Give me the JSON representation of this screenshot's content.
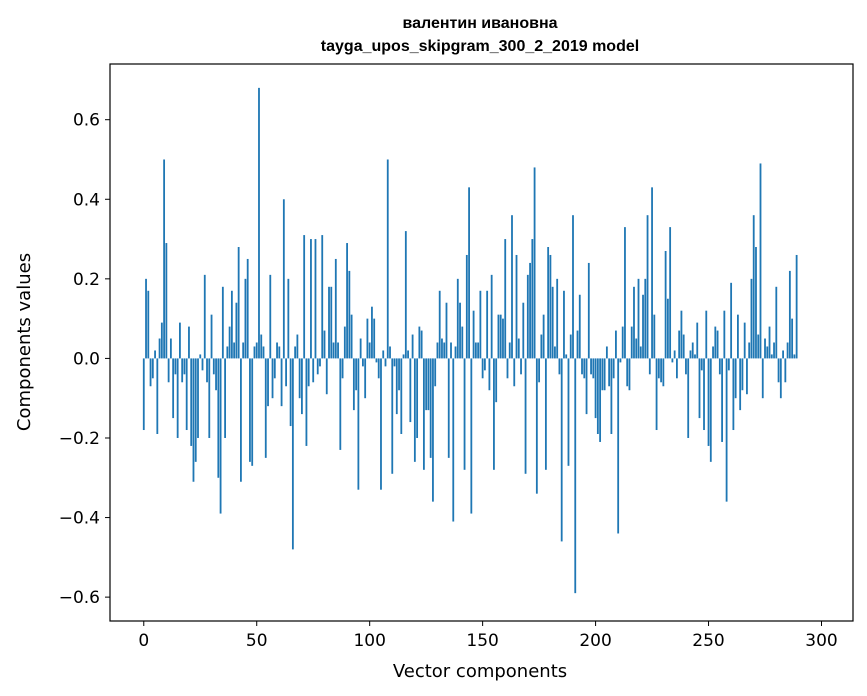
{
  "chart_data": {
    "type": "bar",
    "title": "валентин ивановна",
    "subtitle": "tayga_upos_skipgram_300_2_2019 model",
    "xlabel": "Vector components",
    "ylabel": "Components values",
    "xlim": [
      -14.95,
      313.95
    ],
    "ylim": [
      -0.66,
      0.74
    ],
    "xticks": [
      0,
      50,
      100,
      150,
      200,
      250,
      300
    ],
    "xtick_labels": [
      "0",
      "50",
      "100",
      "150",
      "200",
      "250",
      "300"
    ],
    "yticks": [
      -0.6,
      -0.4,
      -0.2,
      0.0,
      0.2,
      0.4,
      0.6
    ],
    "ytick_labels": [
      "−0.6",
      "−0.4",
      "−0.2",
      "0.0",
      "0.2",
      "0.4",
      "0.6"
    ],
    "bar_color": "#1f77b4",
    "values": [
      -0.18,
      0.2,
      0.17,
      -0.07,
      -0.05,
      0.02,
      -0.19,
      0.05,
      0.09,
      0.5,
      0.29,
      -0.06,
      0.05,
      -0.15,
      -0.04,
      -0.2,
      0.09,
      -0.06,
      -0.04,
      -0.18,
      0.08,
      -0.22,
      -0.31,
      -0.26,
      -0.2,
      0.01,
      -0.03,
      0.21,
      -0.06,
      -0.2,
      0.11,
      -0.04,
      -0.08,
      -0.3,
      -0.39,
      0.18,
      -0.2,
      0.03,
      0.08,
      0.17,
      0.04,
      0.14,
      0.28,
      -0.31,
      0.04,
      0.2,
      0.25,
      -0.26,
      -0.27,
      0.03,
      0.04,
      0.68,
      0.06,
      0.03,
      -0.25,
      -0.12,
      0.21,
      -0.1,
      -0.05,
      0.04,
      0.03,
      -0.12,
      0.4,
      -0.07,
      0.2,
      -0.17,
      -0.48,
      0.03,
      0.06,
      -0.1,
      -0.14,
      0.31,
      -0.22,
      -0.07,
      0.3,
      -0.06,
      0.3,
      -0.04,
      -0.02,
      0.31,
      0.07,
      -0.09,
      0.18,
      0.18,
      0.04,
      0.25,
      0.04,
      -0.23,
      -0.05,
      0.08,
      0.29,
      0.22,
      0.11,
      -0.13,
      -0.08,
      -0.33,
      0.05,
      -0.02,
      -0.1,
      0.1,
      0.04,
      0.13,
      0.1,
      -0.01,
      -0.05,
      -0.33,
      0.02,
      -0.02,
      0.5,
      0.03,
      -0.29,
      -0.02,
      -0.14,
      -0.08,
      -0.19,
      0.01,
      0.32,
      0.02,
      -0.16,
      0.06,
      -0.26,
      -0.2,
      0.08,
      0.07,
      -0.28,
      -0.13,
      -0.13,
      -0.25,
      -0.36,
      -0.07,
      0.04,
      0.17,
      0.05,
      0.04,
      0.14,
      -0.25,
      0.04,
      -0.41,
      0.03,
      0.2,
      0.14,
      0.08,
      -0.28,
      0.26,
      0.43,
      -0.39,
      0.12,
      0.04,
      0.04,
      0.17,
      -0.05,
      -0.03,
      0.17,
      -0.08,
      0.21,
      -0.28,
      -0.11,
      0.11,
      0.11,
      0.1,
      0.3,
      -0.05,
      0.04,
      0.36,
      -0.07,
      0.26,
      0.05,
      -0.04,
      0.14,
      -0.29,
      0.21,
      0.24,
      0.3,
      0.48,
      -0.34,
      -0.06,
      0.06,
      0.11,
      -0.28,
      0.28,
      0.26,
      0.18,
      0.03,
      0.2,
      -0.04,
      -0.46,
      0.17,
      0.01,
      -0.27,
      0.06,
      0.36,
      -0.59,
      0.07,
      0.16,
      -0.04,
      -0.05,
      -0.14,
      0.24,
      -0.04,
      -0.05,
      -0.15,
      -0.19,
      -0.21,
      -0.08,
      -0.08,
      0.03,
      -0.07,
      -0.19,
      -0.05,
      0.07,
      -0.44,
      -0.01,
      0.08,
      0.33,
      -0.07,
      -0.08,
      0.08,
      0.18,
      0.05,
      0.2,
      0.03,
      0.16,
      0.2,
      0.36,
      -0.04,
      0.43,
      0.11,
      -0.18,
      -0.05,
      -0.06,
      -0.07,
      0.27,
      0.15,
      0.33,
      -0.01,
      0.02,
      -0.05,
      0.07,
      0.12,
      0.06,
      -0.04,
      -0.2,
      0.02,
      0.04,
      0.01,
      0.09,
      -0.15,
      -0.03,
      -0.18,
      0.12,
      -0.22,
      -0.26,
      0.03,
      0.08,
      0.07,
      -0.04,
      -0.21,
      0.12,
      -0.36,
      -0.03,
      0.19,
      -0.18,
      -0.1,
      0.11,
      -0.13,
      -0.08,
      0.09,
      -0.09,
      0.04,
      0.2,
      0.36,
      0.28,
      0.06,
      0.49,
      -0.1,
      0.05,
      0.03,
      0.08,
      0.01,
      0.04,
      0.18,
      -0.06,
      -0.1,
      0.02,
      -0.06,
      0.04,
      0.22,
      0.1,
      0.01,
      0.26
    ]
  }
}
